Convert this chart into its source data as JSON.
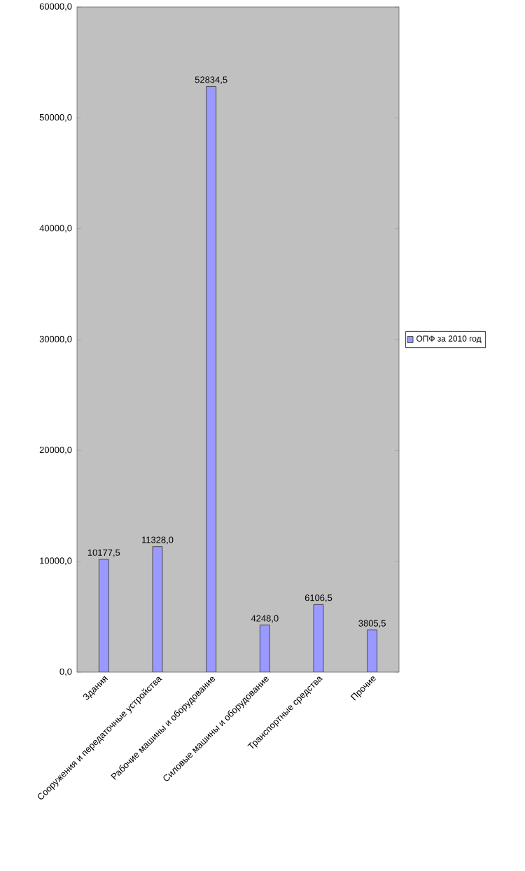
{
  "chart_data": {
    "type": "bar",
    "categories": [
      "Здания",
      "Сооружения и передаточные устройства",
      "Рабочие машины и оборудование",
      "Силовые машины и оборудование",
      "Транспортные средства",
      "Прочие"
    ],
    "series": [
      {
        "name": "ОПФ за 2010 год",
        "color": "#9999ff",
        "values": [
          10177.5,
          11328.0,
          52834.5,
          4248.0,
          6106.5,
          3805.5
        ],
        "value_labels": [
          "10177,5",
          "11328,0",
          "52834,5",
          "4248,0",
          "6106,5",
          "3805,5"
        ]
      }
    ],
    "ylim": [
      0,
      60000
    ],
    "yticks": [
      {
        "value": 0,
        "label": "0,0"
      },
      {
        "value": 10000,
        "label": "10000,0"
      },
      {
        "value": 20000,
        "label": "20000,0"
      },
      {
        "value": 30000,
        "label": "30000,0"
      },
      {
        "value": 40000,
        "label": "40000,0"
      },
      {
        "value": 50000,
        "label": "50000,0"
      },
      {
        "value": 60000,
        "label": "60000,0"
      }
    ],
    "legend": "right"
  }
}
